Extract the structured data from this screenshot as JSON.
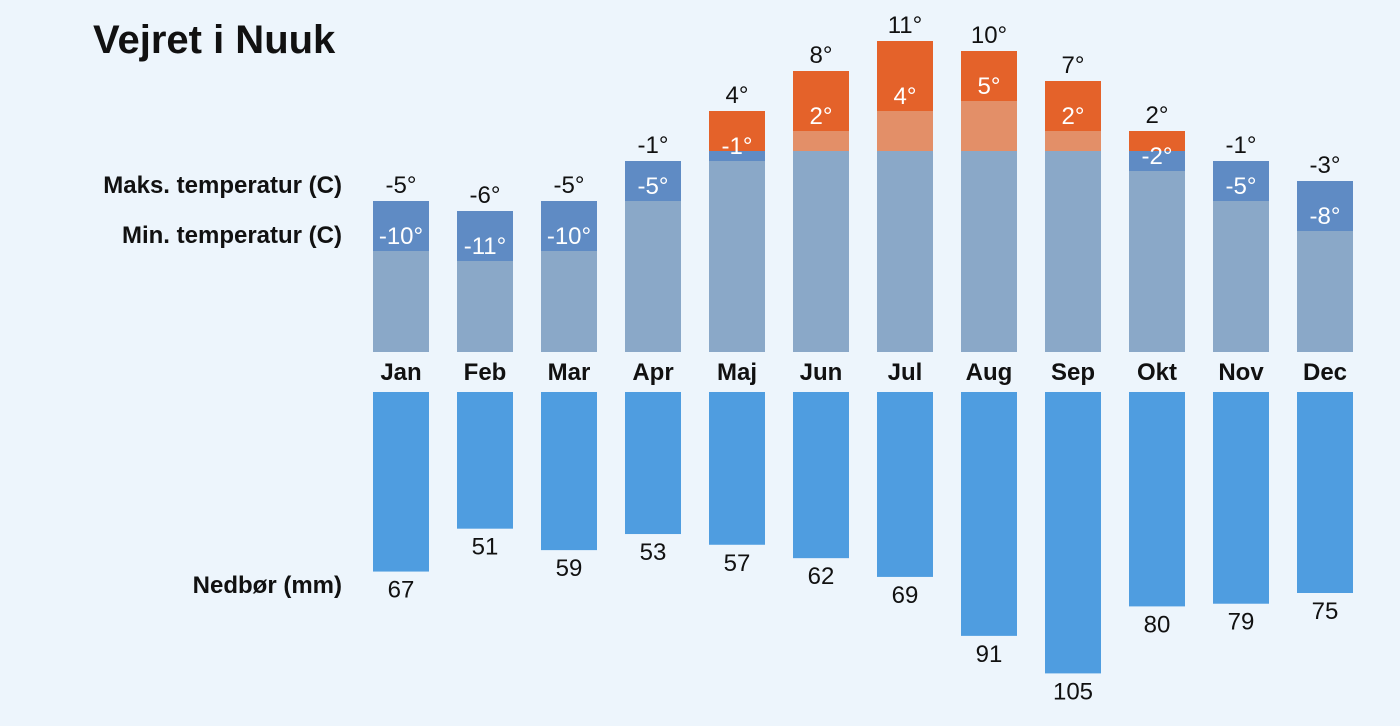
{
  "title": "Vejret i Nuuk",
  "labels": {
    "max": "Maks. temperatur (C)",
    "min": "Min. temperatur (C)",
    "precip": "Nedbør (mm)"
  },
  "colors": {
    "max_warm": "#e4622a",
    "below_min_warm": "#e38f68",
    "max_cold": "#5f8bc4",
    "below_min_cold": "#8aa8c8",
    "precip": "#4f9de0"
  },
  "chart_data": {
    "type": "bar",
    "title": "Vejret i Nuuk",
    "categories": [
      "Jan",
      "Feb",
      "Mar",
      "Apr",
      "Maj",
      "Jun",
      "Jul",
      "Aug",
      "Sep",
      "Okt",
      "Nov",
      "Dec"
    ],
    "series": [
      {
        "name": "Maks. temperatur (C)",
        "values": [
          -5,
          -6,
          -5,
          -1,
          4,
          8,
          11,
          10,
          7,
          2,
          -1,
          -3
        ]
      },
      {
        "name": "Min. temperatur (C)",
        "values": [
          -10,
          -11,
          -10,
          -5,
          -1,
          2,
          4,
          5,
          2,
          -2,
          -5,
          -8
        ]
      },
      {
        "name": "Nedbør (mm)",
        "values": [
          67,
          51,
          59,
          53,
          57,
          62,
          69,
          91,
          105,
          80,
          79,
          75
        ]
      }
    ],
    "temp_range": [
      -20,
      12
    ]
  }
}
